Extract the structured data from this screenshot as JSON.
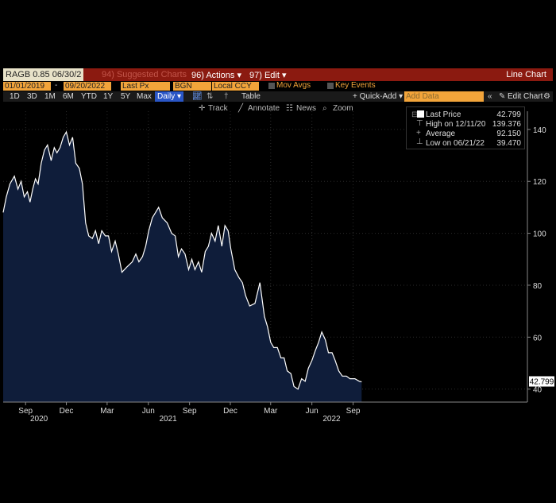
{
  "toolbar": {
    "ticker": "RAGB 0.85 06/30/2",
    "suggested": "94) Suggested Charts",
    "actions": "96) Actions ▾",
    "edit": "97) Edit ▾",
    "chart_type": "Line Chart"
  },
  "settings": {
    "start_date": "01/01/2019",
    "end_date": "09/20/2022",
    "field": "Last Px",
    "source": "BGN",
    "currency": "Local CCY",
    "mov_avgs": "Mov Avgs",
    "key_events": "Key Events"
  },
  "periods": {
    "items": [
      "1D",
      "3D",
      "1M",
      "6M",
      "YTD",
      "1Y",
      "5Y",
      "Max"
    ],
    "frequency": "Daily ▾",
    "table": "Table",
    "quick_add": "+ Quick-Add ▾",
    "add_data_placeholder": "Add Data",
    "edit_chart": "Edit Chart"
  },
  "tools": {
    "track": "Track",
    "annotate": "Annotate",
    "news": "News",
    "zoom": "Zoom"
  },
  "legend": {
    "last_label": "Last Price",
    "last_value": "42.799",
    "high_label": "High on 12/11/20",
    "high_value": "139.376",
    "avg_label": "Average",
    "avg_value": "92.150",
    "low_label": "Low on 06/21/22",
    "low_value": "39.470"
  },
  "colors": {
    "line": "#ffffff",
    "fill": "#0f1d3a",
    "accent": "#f2a43a",
    "bar": "#8b1a10"
  },
  "chart_data": {
    "type": "area",
    "title": "",
    "xlabel": "",
    "ylabel": "",
    "ylim": [
      35,
      147
    ],
    "y_ticks": [
      40,
      60,
      80,
      100,
      120,
      140
    ],
    "x_range": [
      "2019-07-13",
      "2022-09-25"
    ],
    "x_ticks": [
      {
        "label": "Sep",
        "date": "2019-09-01"
      },
      {
        "label": "Dec",
        "date": "2019-12-01"
      },
      {
        "label": "Mar",
        "date": "2020-03-01"
      },
      {
        "label": "Jun",
        "date": "2020-06-01"
      },
      {
        "label": "Sep",
        "date": "2020-09-01"
      },
      {
        "label": "Dec",
        "date": "2020-12-01"
      },
      {
        "label": "Mar",
        "date": "2021-03-01"
      },
      {
        "label": "Jun",
        "date": "2021-06-01"
      },
      {
        "label": "Sep",
        "date": "2021-09-01"
      }
    ],
    "year_labels": [
      {
        "label": "2020",
        "date": "2019-10-01"
      },
      {
        "label": "2021",
        "date": "2020-07-15"
      },
      {
        "label": "2022",
        "date": "2021-07-15"
      }
    ],
    "last_value_label": "42.799",
    "series": [
      {
        "x": [
          "2019-07-13",
          "2019-07-20",
          "2019-07-28",
          "2019-08-07",
          "2019-08-15",
          "2019-08-22",
          "2019-08-29",
          "2019-09-05",
          "2019-09-11",
          "2019-09-17",
          "2019-09-23",
          "2019-09-29",
          "2019-10-06",
          "2019-10-13",
          "2019-10-20",
          "2019-10-28",
          "2019-11-04",
          "2019-11-10",
          "2019-11-17",
          "2019-11-24",
          "2019-12-01",
          "2019-12-08",
          "2019-12-15",
          "2019-12-22",
          "2019-12-30",
          "2020-01-06",
          "2020-01-13",
          "2020-01-20",
          "2020-01-28",
          "2020-02-04",
          "2020-02-11",
          "2020-02-18",
          "2020-02-26",
          "2020-03-04",
          "2020-03-11",
          "2020-03-19",
          "2020-03-26",
          "2020-04-03",
          "2020-04-14",
          "2020-04-26",
          "2020-05-04",
          "2020-05-11",
          "2020-05-19",
          "2020-05-26",
          "2020-06-02",
          "2020-06-10",
          "2020-06-17",
          "2020-06-24",
          "2020-07-02",
          "2020-07-13",
          "2020-07-23",
          "2020-07-31",
          "2020-08-07",
          "2020-08-14",
          "2020-08-22",
          "2020-08-30",
          "2020-09-06",
          "2020-09-13",
          "2020-09-21",
          "2020-09-28",
          "2020-10-06",
          "2020-10-13",
          "2020-10-20",
          "2020-10-28",
          "2020-11-04",
          "2020-11-12",
          "2020-11-19",
          "2020-11-26",
          "2020-12-02",
          "2020-12-11",
          "2020-12-20",
          "2020-12-28",
          "2021-01-04",
          "2021-01-13",
          "2021-01-25",
          "2021-02-05",
          "2021-02-15",
          "2021-02-22",
          "2021-03-01",
          "2021-03-08",
          "2021-03-16",
          "2021-03-24",
          "2021-03-31",
          "2021-04-07",
          "2021-04-15",
          "2021-04-22",
          "2021-05-01",
          "2021-05-09",
          "2021-05-17",
          "2021-05-24",
          "2021-06-01",
          "2021-06-09",
          "2021-06-16",
          "2021-06-23",
          "2021-07-01",
          "2021-07-08",
          "2021-07-16",
          "2021-07-23",
          "2021-07-31",
          "2021-08-08",
          "2021-08-17",
          "2021-08-25",
          "2021-09-05",
          "2021-09-15",
          "2021-09-20"
        ],
        "y": [
          108,
          114,
          119,
          122,
          117,
          120,
          114,
          116,
          112,
          117,
          121,
          119,
          127,
          132,
          134,
          128,
          133,
          131,
          133,
          137,
          139,
          134,
          137,
          127,
          125,
          119,
          104,
          99,
          98,
          101,
          96,
          101,
          99,
          99,
          93,
          97,
          92,
          85,
          87,
          89,
          92,
          89,
          91,
          95,
          101,
          106,
          108,
          110,
          106,
          104,
          100,
          99,
          91,
          94,
          92,
          86,
          90,
          86,
          89,
          85,
          93,
          95,
          100,
          97,
          103,
          95,
          103,
          101,
          94,
          86,
          83,
          81,
          76,
          72,
          73,
          81,
          68,
          64,
          58,
          56,
          56,
          52,
          52,
          47,
          46,
          41,
          40,
          44,
          43,
          48,
          51,
          55,
          58,
          62,
          59,
          54,
          54,
          51,
          47,
          45,
          45,
          44,
          44,
          43,
          42.8
        ]
      }
    ]
  }
}
